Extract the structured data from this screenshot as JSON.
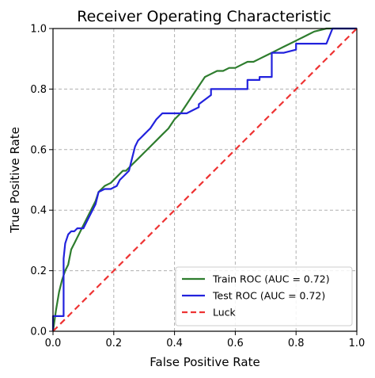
{
  "chart_data": {
    "type": "line",
    "title": "Receiver Operating Characteristic",
    "xlabel": "False Positive Rate",
    "ylabel": "True Positive Rate",
    "xlim": [
      0,
      1
    ],
    "ylim": [
      0,
      1
    ],
    "xticks": [
      "0.0",
      "0.2",
      "0.4",
      "0.6",
      "0.8",
      "1.0"
    ],
    "yticks": [
      "0.0",
      "0.2",
      "0.4",
      "0.6",
      "0.8",
      "1.0"
    ],
    "grid": true,
    "legend_position": "bottom-right",
    "series": [
      {
        "name": "Train ROC (AUC = 0.72)",
        "color": "#2e7d2e",
        "style": "solid",
        "x": [
          0.0,
          0.01,
          0.02,
          0.03,
          0.04,
          0.05,
          0.06,
          0.07,
          0.08,
          0.09,
          0.1,
          0.12,
          0.14,
          0.15,
          0.17,
          0.19,
          0.21,
          0.23,
          0.24,
          0.26,
          0.28,
          0.3,
          0.32,
          0.34,
          0.36,
          0.38,
          0.4,
          0.42,
          0.44,
          0.46,
          0.48,
          0.5,
          0.52,
          0.54,
          0.56,
          0.58,
          0.6,
          0.62,
          0.64,
          0.66,
          0.68,
          0.7,
          0.72,
          0.74,
          0.76,
          0.78,
          0.8,
          0.82,
          0.84,
          0.86,
          0.88,
          0.9,
          0.92,
          1.0
        ],
        "y": [
          0.0,
          0.07,
          0.13,
          0.17,
          0.2,
          0.22,
          0.27,
          0.29,
          0.31,
          0.33,
          0.35,
          0.39,
          0.43,
          0.46,
          0.48,
          0.49,
          0.51,
          0.53,
          0.53,
          0.55,
          0.57,
          0.59,
          0.61,
          0.63,
          0.65,
          0.67,
          0.7,
          0.72,
          0.75,
          0.78,
          0.81,
          0.84,
          0.85,
          0.86,
          0.86,
          0.87,
          0.87,
          0.88,
          0.89,
          0.89,
          0.9,
          0.91,
          0.92,
          0.93,
          0.94,
          0.95,
          0.96,
          0.97,
          0.98,
          0.99,
          0.995,
          1.0,
          1.0,
          1.0
        ]
      },
      {
        "name": "Test ROC (AUC = 0.72)",
        "color": "#2222dd",
        "style": "solid",
        "x": [
          0.0,
          0.0,
          0.035,
          0.035,
          0.04,
          0.05,
          0.06,
          0.07,
          0.08,
          0.1,
          0.11,
          0.12,
          0.14,
          0.15,
          0.17,
          0.19,
          0.21,
          0.22,
          0.24,
          0.25,
          0.26,
          0.27,
          0.28,
          0.29,
          0.3,
          0.31,
          0.32,
          0.34,
          0.36,
          0.38,
          0.4,
          0.42,
          0.44,
          0.46,
          0.48,
          0.48,
          0.52,
          0.52,
          0.56,
          0.6,
          0.64,
          0.64,
          0.68,
          0.68,
          0.72,
          0.72,
          0.76,
          0.8,
          0.8,
          0.9,
          0.92,
          1.0
        ],
        "y": [
          0.0,
          0.05,
          0.05,
          0.24,
          0.29,
          0.32,
          0.33,
          0.33,
          0.34,
          0.34,
          0.36,
          0.38,
          0.42,
          0.46,
          0.47,
          0.47,
          0.48,
          0.5,
          0.52,
          0.53,
          0.57,
          0.61,
          0.63,
          0.64,
          0.65,
          0.66,
          0.67,
          0.7,
          0.72,
          0.72,
          0.72,
          0.72,
          0.72,
          0.73,
          0.74,
          0.75,
          0.78,
          0.8,
          0.8,
          0.8,
          0.8,
          0.83,
          0.83,
          0.84,
          0.84,
          0.92,
          0.92,
          0.93,
          0.95,
          0.95,
          1.0,
          1.0
        ]
      },
      {
        "name": "Luck",
        "color": "#ee3333",
        "style": "dashed",
        "x": [
          0.0,
          1.0
        ],
        "y": [
          0.0,
          1.0
        ]
      }
    ]
  }
}
